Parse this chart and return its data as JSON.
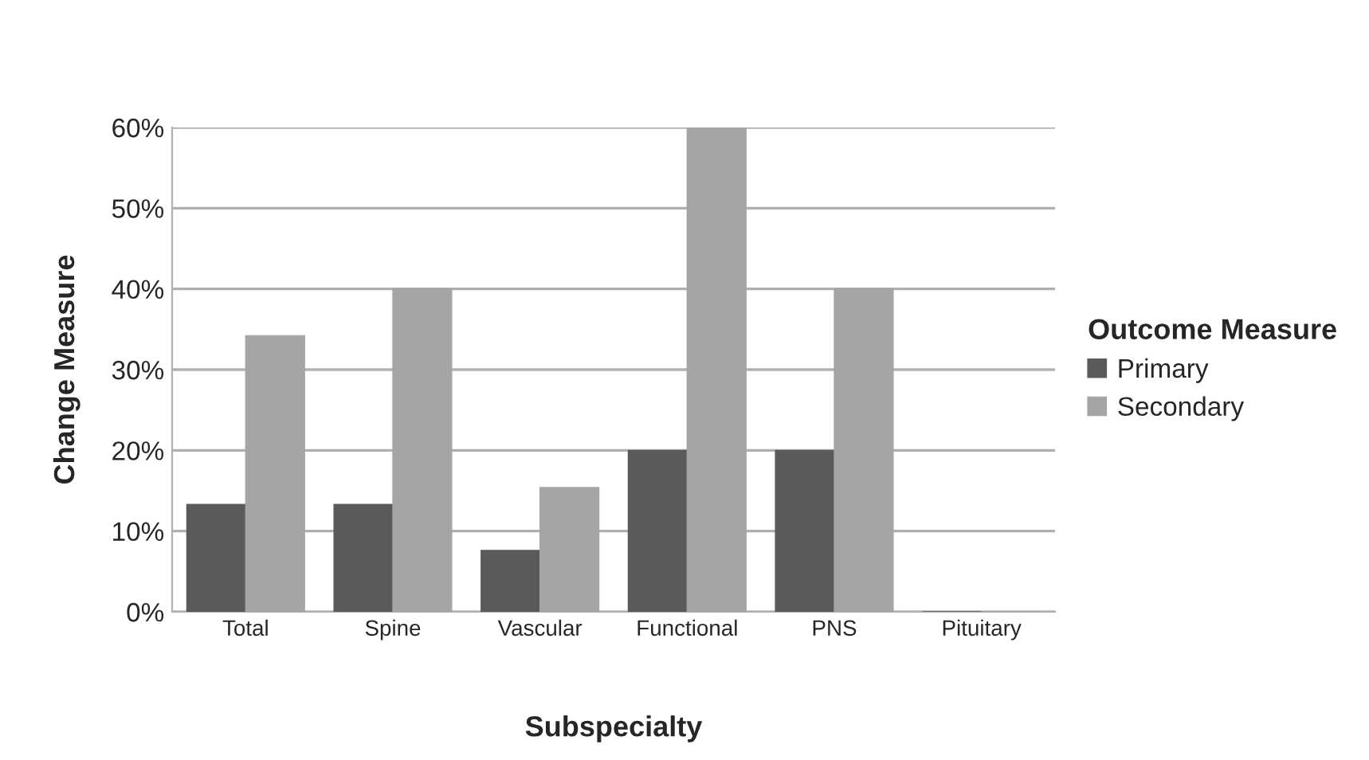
{
  "chart_data": {
    "type": "bar",
    "xlabel": "Subspecialty",
    "ylabel": "Change Measure",
    "legend_title": "Outcome Measure",
    "categories": [
      "Total",
      "Spine",
      "Vascular",
      "Functional",
      "PNS",
      "Pituitary"
    ],
    "series": [
      {
        "name": "Primary",
        "color": "#5a5a5a",
        "values": [
          13.3,
          13.3,
          7.6,
          20,
          20,
          0
        ]
      },
      {
        "name": "Secondary",
        "color": "#a5a5a5",
        "values": [
          34.2,
          40,
          15.4,
          60,
          40,
          0
        ]
      }
    ],
    "ylim": [
      0,
      60
    ],
    "yticks": [
      {
        "value": 0,
        "label": "0%"
      },
      {
        "value": 10,
        "label": "10%"
      },
      {
        "value": 20,
        "label": "20%"
      },
      {
        "value": 30,
        "label": "30%"
      },
      {
        "value": 40,
        "label": "40%"
      },
      {
        "value": 50,
        "label": "50%"
      },
      {
        "value": 60,
        "label": "60%"
      }
    ],
    "grid": "y",
    "legend": "right"
  }
}
